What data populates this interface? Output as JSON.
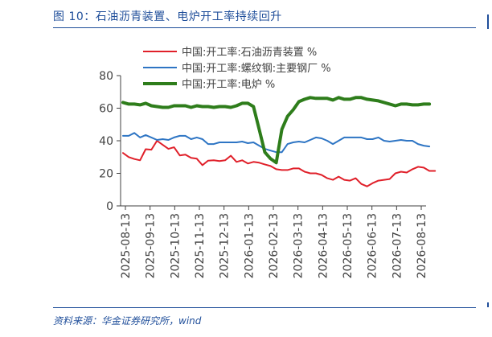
{
  "figure_title": "图 10：石油沥青装置、电炉开工率持续回升",
  "source": "资料来源：华金证券研究所，wind",
  "chart_data": {
    "type": "line",
    "title": "",
    "xlabel": "",
    "ylabel": "",
    "ylim": [
      0,
      80
    ],
    "yticks": [
      0,
      20,
      40,
      60,
      80
    ],
    "xtick_labels": [
      "2025-08-13",
      "2025-09-13",
      "2025-10-13",
      "2025-11-13",
      "2025-12-13",
      "2026-01-13",
      "2026-02-13",
      "2026-03-13",
      "2026-04-13",
      "2026-05-13",
      "2026-06-13",
      "2026-07-13",
      "2026-08-13"
    ],
    "grid": false,
    "legend_position": "top",
    "x_start": "2025-08-13",
    "x_step": "weekly",
    "series": [
      {
        "name": "中国:开工率:石油沥青装置 %",
        "color": "#e0202a",
        "width": 2,
        "values": [
          32.5,
          30.0,
          28.8,
          28.0,
          34.8,
          34.5,
          40.0,
          37.5,
          35.0,
          36.0,
          31.0,
          31.5,
          29.5,
          29.0,
          25.0,
          27.8,
          28.0,
          27.5,
          28.0,
          30.8,
          27.0,
          28.0,
          26.0,
          27.0,
          26.5,
          25.5,
          24.5,
          22.5,
          22.0,
          22.0,
          23.0,
          23.0,
          21.0,
          20.0,
          20.0,
          19.0,
          17.0,
          16.0,
          18.0,
          16.0,
          15.5,
          17.0,
          13.5,
          12.0,
          14.0,
          15.5,
          16.0,
          16.5,
          20.0,
          21.0,
          20.5,
          22.5,
          24.0,
          23.5,
          21.5,
          21.5
        ]
      },
      {
        "name": "中国:开工率:螺纹钢:主要钢厂 %",
        "color": "#2e75c4",
        "width": 2,
        "values": [
          43.0,
          43.0,
          44.8,
          42.0,
          43.5,
          42.0,
          40.5,
          41.0,
          40.5,
          42.0,
          43.0,
          43.0,
          41.0,
          42.0,
          41.0,
          38.0,
          38.0,
          39.0,
          39.0,
          39.0,
          39.0,
          39.5,
          38.5,
          39.0,
          37.0,
          35.0,
          34.0,
          33.0,
          33.0,
          38.0,
          39.0,
          39.5,
          39.0,
          40.5,
          42.0,
          41.5,
          40.0,
          38.0,
          40.0,
          42.0,
          42.0,
          42.0,
          42.0,
          41.0,
          41.0,
          42.0,
          40.0,
          39.5,
          40.0,
          40.5,
          40.0,
          40.0,
          38.0,
          37.0,
          36.5
        ]
      },
      {
        "name": "中国:开工率:电炉 %",
        "color": "#2e7d1b",
        "width": 4,
        "values": [
          63.5,
          62.5,
          62.5,
          62.0,
          63.0,
          61.5,
          61.0,
          60.5,
          60.5,
          61.5,
          61.5,
          61.5,
          60.5,
          61.5,
          61.0,
          61.0,
          60.5,
          61.0,
          61.0,
          60.5,
          61.5,
          63.0,
          63.0,
          61.0,
          47.0,
          33.0,
          29.0,
          26.5,
          47.0,
          55.0,
          59.0,
          64.0,
          65.5,
          66.5,
          66.0,
          66.0,
          66.0,
          65.0,
          66.5,
          65.5,
          65.5,
          66.5,
          66.5,
          65.5,
          65.0,
          64.5,
          63.5,
          62.5,
          61.5,
          62.5,
          62.5,
          62.0,
          62.0,
          62.5,
          62.5
        ]
      }
    ]
  }
}
